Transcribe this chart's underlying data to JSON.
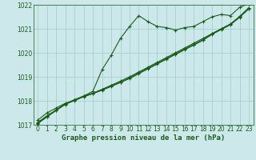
{
  "x": [
    0,
    1,
    2,
    3,
    4,
    5,
    6,
    7,
    8,
    9,
    10,
    11,
    12,
    13,
    14,
    15,
    16,
    17,
    18,
    19,
    20,
    21,
    22,
    23
  ],
  "line1": [
    1017.2,
    1017.5,
    1017.7,
    1017.9,
    1018.0,
    1018.2,
    1018.4,
    1019.3,
    1019.9,
    1020.6,
    1021.1,
    1021.55,
    1021.3,
    1021.1,
    1021.05,
    1020.95,
    1021.05,
    1021.1,
    1021.3,
    1021.5,
    1021.6,
    1021.55,
    1021.9,
    1022.05
  ],
  "line2": [
    1017.1,
    1017.38,
    1017.62,
    1017.88,
    1018.05,
    1018.2,
    1018.32,
    1018.48,
    1018.65,
    1018.82,
    1019.0,
    1019.2,
    1019.4,
    1019.6,
    1019.8,
    1020.0,
    1020.2,
    1020.4,
    1020.6,
    1020.8,
    1021.0,
    1021.2,
    1021.52,
    1021.88
  ],
  "line3": [
    1017.05,
    1017.33,
    1017.6,
    1017.85,
    1018.02,
    1018.17,
    1018.3,
    1018.44,
    1018.6,
    1018.76,
    1018.93,
    1019.13,
    1019.33,
    1019.53,
    1019.73,
    1019.93,
    1020.13,
    1020.32,
    1020.52,
    1020.77,
    1020.97,
    1021.17,
    1021.48,
    1021.83
  ],
  "line4": [
    1017.08,
    1017.35,
    1017.61,
    1017.87,
    1018.03,
    1018.18,
    1018.31,
    1018.46,
    1018.62,
    1018.78,
    1018.96,
    1019.16,
    1019.36,
    1019.56,
    1019.76,
    1019.96,
    1020.16,
    1020.35,
    1020.55,
    1020.8,
    1021.0,
    1021.2,
    1021.5,
    1021.85
  ],
  "ylim": [
    1017.0,
    1022.0
  ],
  "xlim": [
    -0.5,
    23.5
  ],
  "yticks": [
    1017,
    1018,
    1019,
    1020,
    1021,
    1022
  ],
  "xticks": [
    0,
    1,
    2,
    3,
    4,
    5,
    6,
    7,
    8,
    9,
    10,
    11,
    12,
    13,
    14,
    15,
    16,
    17,
    18,
    19,
    20,
    21,
    22,
    23
  ],
  "xlabel": "Graphe pression niveau de la mer (hPa)",
  "bg_color": "#cce8ea",
  "grid_color": "#aacfd2",
  "line_color": "#1a5c1a",
  "marker": "+",
  "markersize": 3,
  "linewidth": 0.8,
  "tick_fontsize": 5.5,
  "xlabel_fontsize": 6.5
}
